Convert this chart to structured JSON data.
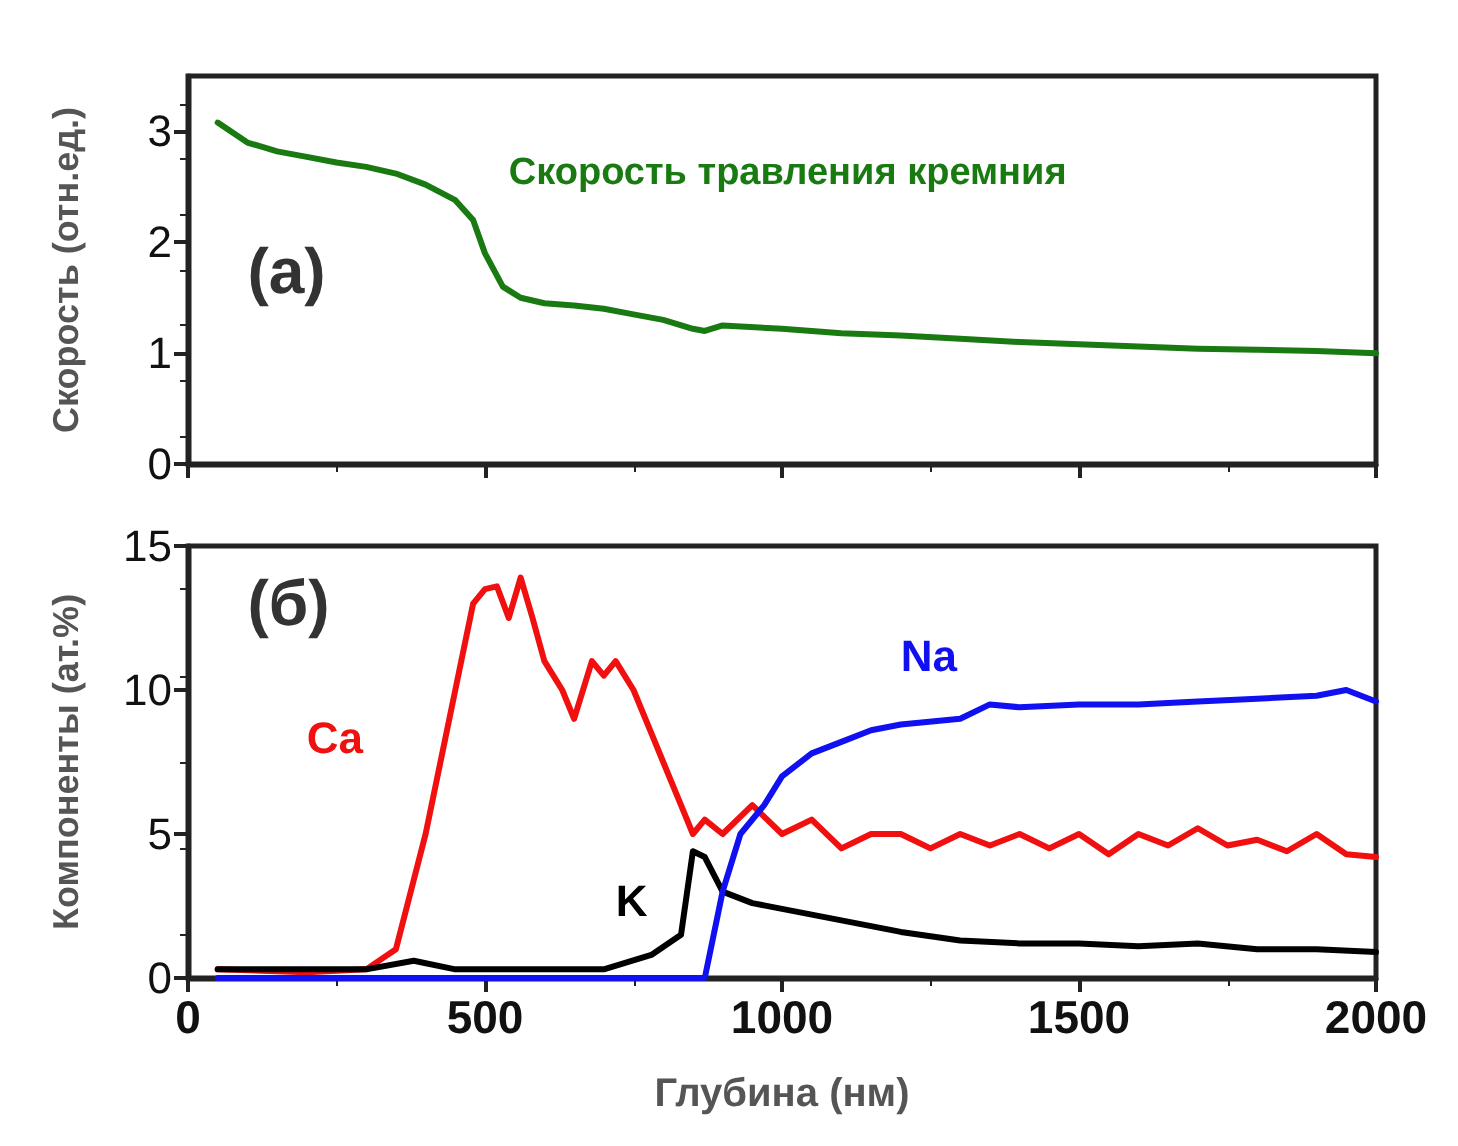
{
  "chart_data": [
    {
      "type": "line",
      "ylabel": "Скорость (отн.ед.)",
      "annotations": [
        "(a)"
      ],
      "xlim": [
        0,
        2000
      ],
      "xticks": [
        0,
        500,
        1000,
        1500,
        2000
      ],
      "ylim": [
        0,
        3.5
      ],
      "yticks": [
        0,
        1,
        2,
        3
      ],
      "tick_labels": "y",
      "grid": false,
      "legend": false,
      "marker": "none",
      "line_style": "solid",
      "series": [
        {
          "name": "Скорость травления кремния",
          "color": "#1a7a12",
          "x": [
            50,
            100,
            150,
            200,
            250,
            300,
            350,
            400,
            450,
            480,
            500,
            530,
            560,
            600,
            650,
            700,
            750,
            800,
            850,
            870,
            900,
            1000,
            1100,
            1200,
            1300,
            1400,
            1500,
            1600,
            1700,
            1800,
            1900,
            2000
          ],
          "values": [
            3.08,
            2.9,
            2.82,
            2.77,
            2.72,
            2.68,
            2.62,
            2.52,
            2.38,
            2.2,
            1.9,
            1.6,
            1.5,
            1.45,
            1.43,
            1.4,
            1.35,
            1.3,
            1.22,
            1.2,
            1.25,
            1.22,
            1.18,
            1.16,
            1.13,
            1.1,
            1.08,
            1.06,
            1.04,
            1.03,
            1.02,
            1.0
          ]
        }
      ]
    },
    {
      "type": "line",
      "xlabel": "Глубина (нм)",
      "ylabel": "Компоненты (ат.%)",
      "annotations": [
        "(б)"
      ],
      "xlim": [
        0,
        2000
      ],
      "xticks": [
        0,
        500,
        1000,
        1500,
        2000
      ],
      "ylim": [
        0,
        15
      ],
      "yticks": [
        0,
        5,
        10,
        15
      ],
      "grid": false,
      "legend": false,
      "marker": "none",
      "line_style": "solid",
      "series": [
        {
          "name": "Ca",
          "color": "#f01010",
          "x": [
            50,
            200,
            300,
            350,
            400,
            450,
            480,
            500,
            520,
            540,
            560,
            580,
            600,
            630,
            650,
            680,
            700,
            720,
            750,
            780,
            800,
            830,
            850,
            870,
            900,
            950,
            1000,
            1050,
            1100,
            1150,
            1200,
            1250,
            1300,
            1350,
            1400,
            1450,
            1500,
            1550,
            1600,
            1650,
            1700,
            1750,
            1800,
            1850,
            1900,
            1950,
            2000
          ],
          "values": [
            0.3,
            0.2,
            0.3,
            1,
            5,
            10,
            13,
            13.5,
            13.6,
            12.5,
            13.9,
            12.5,
            11,
            10,
            9,
            11,
            10.5,
            11,
            10,
            8.5,
            7.5,
            6,
            5,
            5.5,
            5,
            6,
            5,
            5.5,
            4.5,
            5,
            5,
            4.5,
            5,
            4.6,
            5,
            4.5,
            5,
            4.3,
            5,
            4.6,
            5.2,
            4.6,
            4.8,
            4.4,
            5,
            4.3,
            4.2
          ]
        },
        {
          "name": "K",
          "color": "#000000",
          "x": [
            50,
            300,
            380,
            450,
            700,
            780,
            830,
            850,
            870,
            900,
            950,
            1000,
            1100,
            1200,
            1300,
            1400,
            1500,
            1600,
            1700,
            1800,
            1900,
            2000
          ],
          "values": [
            0.3,
            0.3,
            0.6,
            0.3,
            0.3,
            0.8,
            1.5,
            4.4,
            4.2,
            3,
            2.6,
            2.4,
            2,
            1.6,
            1.3,
            1.2,
            1.2,
            1.1,
            1.2,
            1.0,
            1.0,
            0.9
          ]
        },
        {
          "name": "Na",
          "color": "#1010f0",
          "x": [
            50,
            870,
            900,
            930,
            970,
            1000,
            1050,
            1100,
            1150,
            1200,
            1300,
            1350,
            1400,
            1500,
            1600,
            1700,
            1800,
            1900,
            1950,
            2000
          ],
          "values": [
            0,
            0,
            3,
            5,
            6,
            7,
            7.8,
            8.2,
            8.6,
            8.8,
            9,
            9.5,
            9.4,
            9.5,
            9.5,
            9.6,
            9.7,
            9.8,
            10,
            9.6
          ]
        }
      ]
    }
  ]
}
